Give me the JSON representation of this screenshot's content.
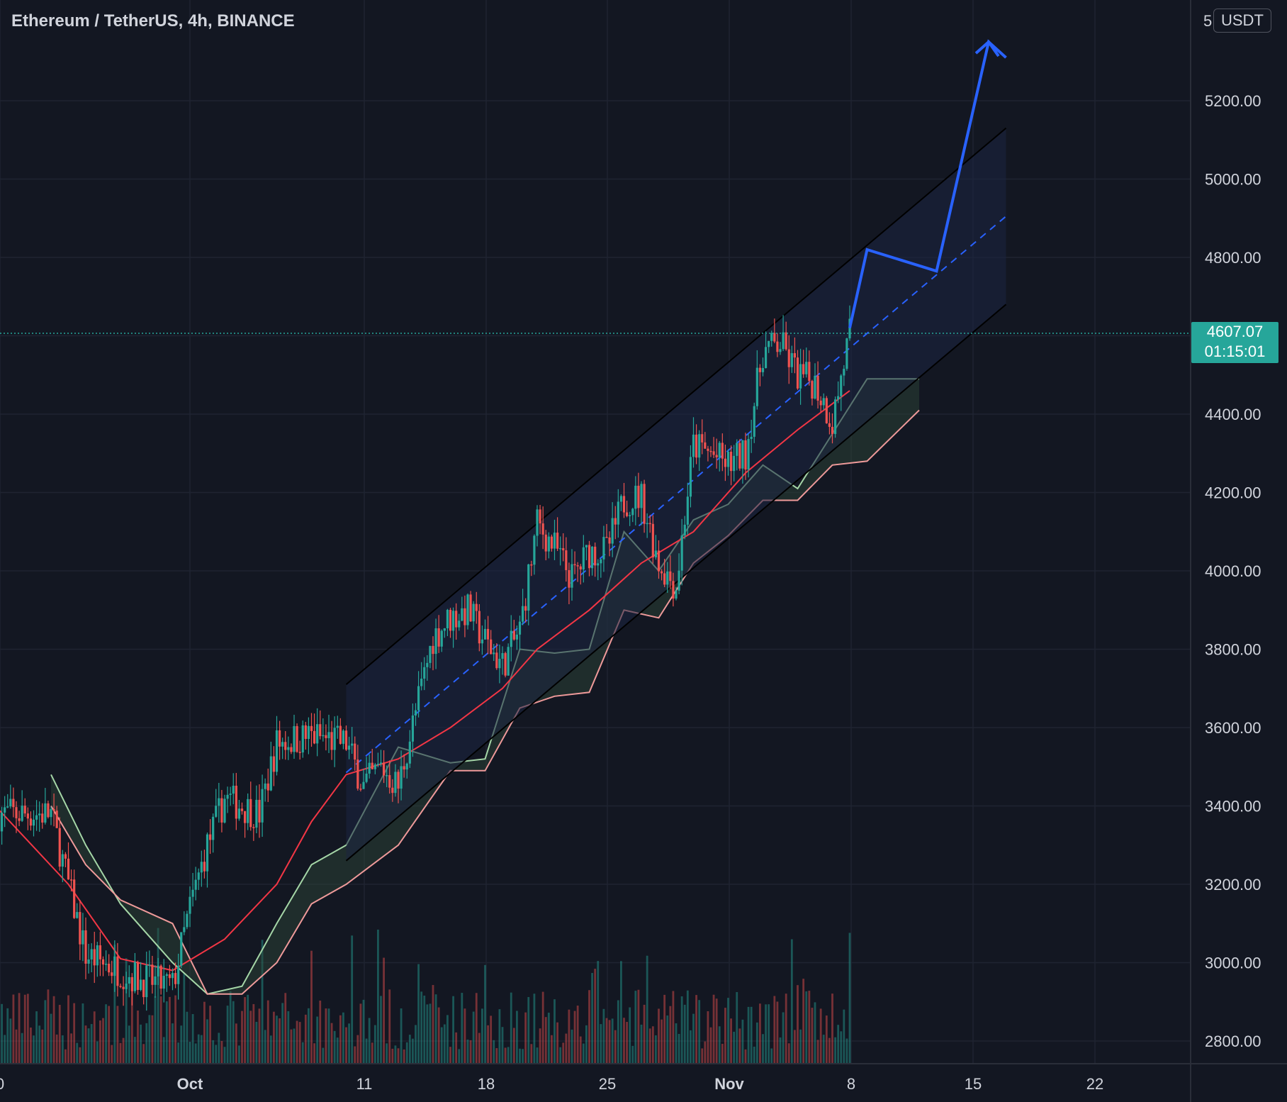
{
  "header": {
    "title": "Ethereum / TetherUS, 4h, BINANCE"
  },
  "price_axis": {
    "unit": "USDT",
    "top_tick_partial": "5",
    "current_price": "4607.07",
    "countdown": "01:15:01"
  },
  "colors": {
    "background": "#131722",
    "up": "#26a69a",
    "down": "#ef5350",
    "ma": "#f23645",
    "projection": "#2962ff",
    "cloud_span_a": "#a5d6a7",
    "cloud_span_b": "#ef9a9a",
    "channel_fill": "#1c2542"
  },
  "chart_data": {
    "type": "candlestick",
    "x_tick_labels": [
      "0",
      "Oct",
      "11",
      "18",
      "25",
      "Nov",
      "8",
      "15",
      "22"
    ],
    "y_tick_labels": [
      "5200.00",
      "5000.00",
      "4800.00",
      "4400.00",
      "4200.00",
      "4000.00",
      "3800.00",
      "3600.00",
      "3400.00",
      "3200.00",
      "3000.00",
      "2800.00"
    ],
    "y_ticks": [
      5200,
      5000,
      4800,
      4400,
      4200,
      4000,
      3800,
      3600,
      3400,
      3200,
      3000,
      2800
    ],
    "ylim": [
      2780,
      5550
    ],
    "grid": true,
    "current_price": 4607.07,
    "anchors": [
      {
        "date": "2021-09-23",
        "price": 3380
      },
      {
        "date": "2021-09-25",
        "price": 3020
      },
      {
        "date": "2021-09-28",
        "price": 2960
      },
      {
        "date": "2021-09-30",
        "price": 2940
      },
      {
        "date": "2021-10-01",
        "price": 3140
      },
      {
        "date": "2021-10-02",
        "price": 3300
      },
      {
        "date": "2021-10-03",
        "price": 3420
      },
      {
        "date": "2021-10-05",
        "price": 3380
      },
      {
        "date": "2021-10-06",
        "price": 3560
      },
      {
        "date": "2021-10-08",
        "price": 3580
      },
      {
        "date": "2021-10-10",
        "price": 3560
      },
      {
        "date": "2021-10-11",
        "price": 3450
      },
      {
        "date": "2021-10-12",
        "price": 3500
      },
      {
        "date": "2021-10-13",
        "price": 3450
      },
      {
        "date": "2021-10-14",
        "price": 3640
      },
      {
        "date": "2021-10-15",
        "price": 3830
      },
      {
        "date": "2021-10-16",
        "price": 3880
      },
      {
        "date": "2021-10-17",
        "price": 3900
      },
      {
        "date": "2021-10-18",
        "price": 3820
      },
      {
        "date": "2021-10-19",
        "price": 3760
      },
      {
        "date": "2021-10-20",
        "price": 3850
      },
      {
        "date": "2021-10-21",
        "price": 4120
      },
      {
        "date": "2021-10-22",
        "price": 4060
      },
      {
        "date": "2021-10-23",
        "price": 3980
      },
      {
        "date": "2021-10-24",
        "price": 4050
      },
      {
        "date": "2021-10-25",
        "price": 4050
      },
      {
        "date": "2021-10-26",
        "price": 4180
      },
      {
        "date": "2021-10-27",
        "price": 4190
      },
      {
        "date": "2021-10-28",
        "price": 4020
      },
      {
        "date": "2021-10-29",
        "price": 3960
      },
      {
        "date": "2021-10-30",
        "price": 4320
      },
      {
        "date": "2021-10-31",
        "price": 4300
      },
      {
        "date": "2021-11-01",
        "price": 4270
      },
      {
        "date": "2021-11-02",
        "price": 4300
      },
      {
        "date": "2021-11-03",
        "price": 4560
      },
      {
        "date": "2021-11-04",
        "price": 4580
      },
      {
        "date": "2021-11-05",
        "price": 4500
      },
      {
        "date": "2021-11-06",
        "price": 4480
      },
      {
        "date": "2021-11-07",
        "price": 4380
      },
      {
        "date": "2021-11-08",
        "price": 4607
      }
    ],
    "channel": {
      "upper": [
        {
          "date": "2021-10-10",
          "price": 3710
        },
        {
          "date": "2021-11-17",
          "price": 5130
        }
      ],
      "lower": [
        {
          "date": "2021-10-10",
          "price": 3260
        },
        {
          "date": "2021-11-17",
          "price": 4680
        }
      ],
      "mid": [
        {
          "date": "2021-10-10",
          "price": 3485
        },
        {
          "date": "2021-11-17",
          "price": 4905
        }
      ]
    },
    "projection": [
      {
        "date": "2021-11-08",
        "price": 4620
      },
      {
        "date": "2021-11-09",
        "price": 4820
      },
      {
        "date": "2021-11-13",
        "price": 4765
      },
      {
        "date": "2021-11-16",
        "price": 5350
      },
      {
        "date": "2021-11-17",
        "price": 5310
      }
    ],
    "ma_line": [
      {
        "date": "2021-09-20",
        "price": 3390
      },
      {
        "date": "2021-09-24",
        "price": 3200
      },
      {
        "date": "2021-09-27",
        "price": 3010
      },
      {
        "date": "2021-09-30",
        "price": 2980
      },
      {
        "date": "2021-10-03",
        "price": 3060
      },
      {
        "date": "2021-10-06",
        "price": 3200
      },
      {
        "date": "2021-10-08",
        "price": 3360
      },
      {
        "date": "2021-10-10",
        "price": 3480
      },
      {
        "date": "2021-10-13",
        "price": 3520
      },
      {
        "date": "2021-10-16",
        "price": 3600
      },
      {
        "date": "2021-10-19",
        "price": 3700
      },
      {
        "date": "2021-10-21",
        "price": 3800
      },
      {
        "date": "2021-10-24",
        "price": 3900
      },
      {
        "date": "2021-10-27",
        "price": 4020
      },
      {
        "date": "2021-10-30",
        "price": 4100
      },
      {
        "date": "2021-11-02",
        "price": 4250
      },
      {
        "date": "2021-11-05",
        "price": 4360
      },
      {
        "date": "2021-11-08",
        "price": 4460
      }
    ],
    "cloud_span_a": [
      {
        "date": "2021-09-23",
        "price": 3480
      },
      {
        "date": "2021-09-25",
        "price": 3300
      },
      {
        "date": "2021-09-27",
        "price": 3150
      },
      {
        "date": "2021-09-30",
        "price": 3000
      },
      {
        "date": "2021-10-02",
        "price": 2920
      },
      {
        "date": "2021-10-04",
        "price": 2940
      },
      {
        "date": "2021-10-06",
        "price": 3100
      },
      {
        "date": "2021-10-08",
        "price": 3250
      },
      {
        "date": "2021-10-10",
        "price": 3300
      },
      {
        "date": "2021-10-13",
        "price": 3550
      },
      {
        "date": "2021-10-16",
        "price": 3510
      },
      {
        "date": "2021-10-18",
        "price": 3520
      },
      {
        "date": "2021-10-20",
        "price": 3800
      },
      {
        "date": "2021-10-22",
        "price": 3790
      },
      {
        "date": "2021-10-24",
        "price": 3800
      },
      {
        "date": "2021-10-26",
        "price": 4100
      },
      {
        "date": "2021-10-28",
        "price": 4000
      },
      {
        "date": "2021-10-30",
        "price": 4130
      },
      {
        "date": "2021-11-01",
        "price": 4170
      },
      {
        "date": "2021-11-03",
        "price": 4270
      },
      {
        "date": "2021-11-05",
        "price": 4210
      },
      {
        "date": "2021-11-07",
        "price": 4350
      },
      {
        "date": "2021-11-09",
        "price": 4490
      },
      {
        "date": "2021-11-12",
        "price": 4490
      }
    ],
    "cloud_span_b": [
      {
        "date": "2021-09-23",
        "price": 3400
      },
      {
        "date": "2021-09-25",
        "price": 3250
      },
      {
        "date": "2021-09-27",
        "price": 3160
      },
      {
        "date": "2021-09-30",
        "price": 3100
      },
      {
        "date": "2021-10-02",
        "price": 2920
      },
      {
        "date": "2021-10-04",
        "price": 2920
      },
      {
        "date": "2021-10-06",
        "price": 3000
      },
      {
        "date": "2021-10-08",
        "price": 3150
      },
      {
        "date": "2021-10-10",
        "price": 3200
      },
      {
        "date": "2021-10-13",
        "price": 3300
      },
      {
        "date": "2021-10-16",
        "price": 3490
      },
      {
        "date": "2021-10-18",
        "price": 3490
      },
      {
        "date": "2021-10-20",
        "price": 3650
      },
      {
        "date": "2021-10-22",
        "price": 3680
      },
      {
        "date": "2021-10-24",
        "price": 3690
      },
      {
        "date": "2021-10-26",
        "price": 3900
      },
      {
        "date": "2021-10-28",
        "price": 3880
      },
      {
        "date": "2021-10-30",
        "price": 4020
      },
      {
        "date": "2021-11-01",
        "price": 4090
      },
      {
        "date": "2021-11-03",
        "price": 4180
      },
      {
        "date": "2021-11-05",
        "price": 4180
      },
      {
        "date": "2021-11-07",
        "price": 4270
      },
      {
        "date": "2021-11-09",
        "price": 4280
      },
      {
        "date": "2021-11-12",
        "price": 4410
      }
    ]
  }
}
